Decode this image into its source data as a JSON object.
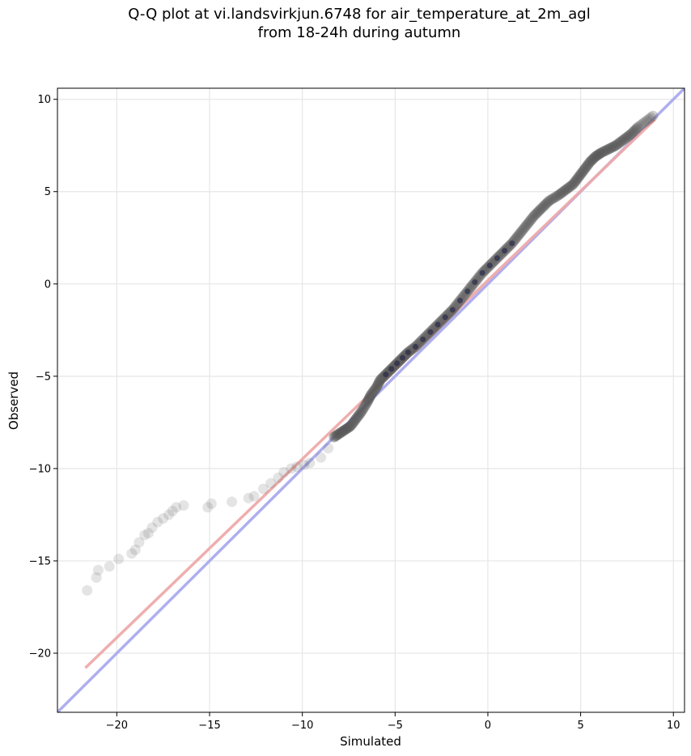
{
  "chart_data": {
    "type": "scatter",
    "title_line1": "Q-Q plot at vi.landsvirkjun.6748 for air_temperature_at_2m_agl",
    "title_line2": "from 18-24h during autumn",
    "xlabel": "Simulated",
    "ylabel": "Observed",
    "xlim": [
      -23.2,
      10.6
    ],
    "ylim": [
      -23.2,
      10.6
    ],
    "xticks": [
      -20,
      -15,
      -10,
      -5,
      0,
      5,
      10
    ],
    "yticks": [
      -20,
      -15,
      -10,
      -5,
      0,
      5,
      10
    ],
    "grid": true,
    "colors": {
      "points": "#555555",
      "identity_line": "#aaaaee",
      "fit_line": "#eeaaaa",
      "tail_fit_line": "#a070c8",
      "core_points": "#1a1a44"
    },
    "identity_line": {
      "x": [
        -23.2,
        10.6
      ],
      "y": [
        -23.2,
        10.6
      ]
    },
    "fit_line": {
      "x": [
        -21.7,
        9.0
      ],
      "y": [
        -20.8,
        8.9
      ]
    },
    "quantiles": {
      "x": [
        -21.6,
        -21.1,
        -21.0,
        -20.4,
        -19.9,
        -19.2,
        -19.0,
        -18.8,
        -18.5,
        -18.3,
        -18.1,
        -17.8,
        -17.5,
        -17.2,
        -17.0,
        -16.8,
        -16.4,
        -15.1,
        -14.9,
        -13.8,
        -12.9,
        -12.6,
        -12.1,
        -11.7,
        -11.3,
        -11.0,
        -10.6,
        -10.3,
        -9.9,
        -9.6,
        -9.0,
        -8.6,
        -8.3,
        -8.0,
        -7.7,
        -7.4,
        -7.1,
        -6.8,
        -6.5,
        -6.3,
        -6.0,
        -5.8,
        -5.5,
        -5.2,
        -4.9,
        -4.6,
        -4.3,
        -3.9,
        -3.5,
        -3.1,
        -2.7,
        -2.3,
        -1.9,
        -1.5,
        -1.1,
        -0.7,
        -0.3,
        0.1,
        0.5,
        0.9,
        1.3,
        1.7,
        2.1,
        2.5,
        2.9,
        3.3,
        3.8,
        4.2,
        4.6,
        4.9,
        5.2,
        5.5,
        5.8,
        6.1,
        6.5,
        6.9,
        7.3,
        7.7,
        8.1,
        8.9
      ],
      "y": [
        -16.6,
        -15.9,
        -15.5,
        -15.3,
        -14.9,
        -14.6,
        -14.4,
        -14.0,
        -13.6,
        -13.5,
        -13.2,
        -12.9,
        -12.7,
        -12.5,
        -12.3,
        -12.1,
        -12.0,
        -12.1,
        -11.9,
        -11.8,
        -11.6,
        -11.5,
        -11.1,
        -10.8,
        -10.5,
        -10.2,
        -10.0,
        -9.9,
        -9.8,
        -9.7,
        -9.4,
        -8.9,
        -8.3,
        -8.1,
        -7.9,
        -7.7,
        -7.3,
        -6.9,
        -6.4,
        -6.0,
        -5.6,
        -5.2,
        -4.9,
        -4.6,
        -4.3,
        -4.0,
        -3.7,
        -3.4,
        -3.0,
        -2.6,
        -2.2,
        -1.8,
        -1.4,
        -0.9,
        -0.4,
        0.1,
        0.6,
        1.0,
        1.4,
        1.8,
        2.2,
        2.7,
        3.2,
        3.7,
        4.1,
        4.5,
        4.8,
        5.1,
        5.4,
        5.8,
        6.2,
        6.6,
        6.9,
        7.1,
        7.3,
        7.5,
        7.8,
        8.1,
        8.5,
        9.1
      ]
    }
  }
}
